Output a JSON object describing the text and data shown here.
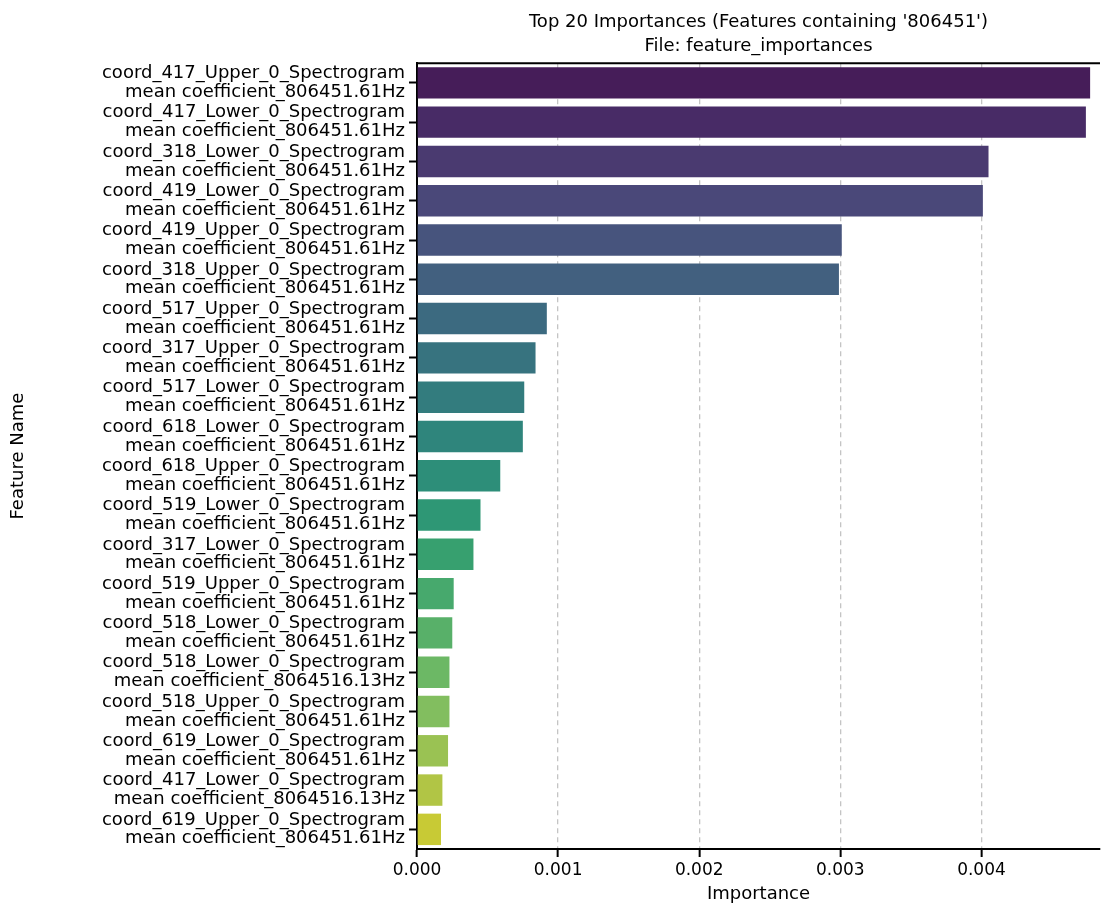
{
  "chart_data": {
    "type": "bar",
    "orientation": "horizontal",
    "title": "Top 20 Importances (Features containing '806451')",
    "subtitle": "File: feature_importances",
    "xlabel": "Importance",
    "ylabel": "Feature Name",
    "categories": [
      "coord_417_Upper_0_Spectrogram\nmean coefficient_806451.61Hz",
      "coord_417_Lower_0_Spectrogram\nmean coefficient_806451.61Hz",
      "coord_318_Lower_0_Spectrogram\nmean coefficient_806451.61Hz",
      "coord_419_Lower_0_Spectrogram\nmean coefficient_806451.61Hz",
      "coord_419_Upper_0_Spectrogram\nmean coefficient_806451.61Hz",
      "coord_318_Upper_0_Spectrogram\nmean coefficient_806451.61Hz",
      "coord_517_Upper_0_Spectrogram\nmean coefficient_806451.61Hz",
      "coord_317_Upper_0_Spectrogram\nmean coefficient_806451.61Hz",
      "coord_517_Lower_0_Spectrogram\nmean coefficient_806451.61Hz",
      "coord_618_Lower_0_Spectrogram\nmean coefficient_806451.61Hz",
      "coord_618_Upper_0_Spectrogram\nmean coefficient_806451.61Hz",
      "coord_519_Lower_0_Spectrogram\nmean coefficient_806451.61Hz",
      "coord_317_Lower_0_Spectrogram\nmean coefficient_806451.61Hz",
      "coord_519_Upper_0_Spectrogram\nmean coefficient_806451.61Hz",
      "coord_518_Lower_0_Spectrogram\nmean coefficient_806451.61Hz",
      "coord_518_Lower_0_Spectrogram\nmean coefficient_8064516.13Hz",
      "coord_518_Upper_0_Spectrogram\nmean coefficient_806451.61Hz",
      "coord_619_Lower_0_Spectrogram\nmean coefficient_806451.61Hz",
      "coord_417_Lower_0_Spectrogram\nmean coefficient_8064516.13Hz",
      "coord_619_Upper_0_Spectrogram\nmean coefficient_806451.61Hz"
    ],
    "values": [
      0.00477,
      0.00474,
      0.00405,
      0.00401,
      0.00301,
      0.00299,
      0.00092,
      0.00084,
      0.00076,
      0.00075,
      0.00059,
      0.00045,
      0.0004,
      0.00026,
      0.00025,
      0.00023,
      0.00023,
      0.00022,
      0.00018,
      0.00017
    ],
    "colors": [
      "#461d59",
      "#482b66",
      "#4a3a70",
      "#4a4879",
      "#47547d",
      "#42607f",
      "#3c6a80",
      "#37737f",
      "#337c7e",
      "#2f857c",
      "#2d8e79",
      "#2e9775",
      "#37a06f",
      "#47a96d",
      "#58b069",
      "#6cb865",
      "#82be5f",
      "#9ac253",
      "#b1c545",
      "#c8ca35"
    ],
    "xlim": [
      0,
      0.00484
    ],
    "xticks": [
      {
        "value": 0,
        "label": "0.000"
      },
      {
        "value": 0.001,
        "label": "0.001"
      },
      {
        "value": 0.002,
        "label": "0.002"
      },
      {
        "value": 0.003,
        "label": "0.003"
      },
      {
        "value": 0.004,
        "label": "0.004"
      }
    ],
    "grid": "x"
  }
}
